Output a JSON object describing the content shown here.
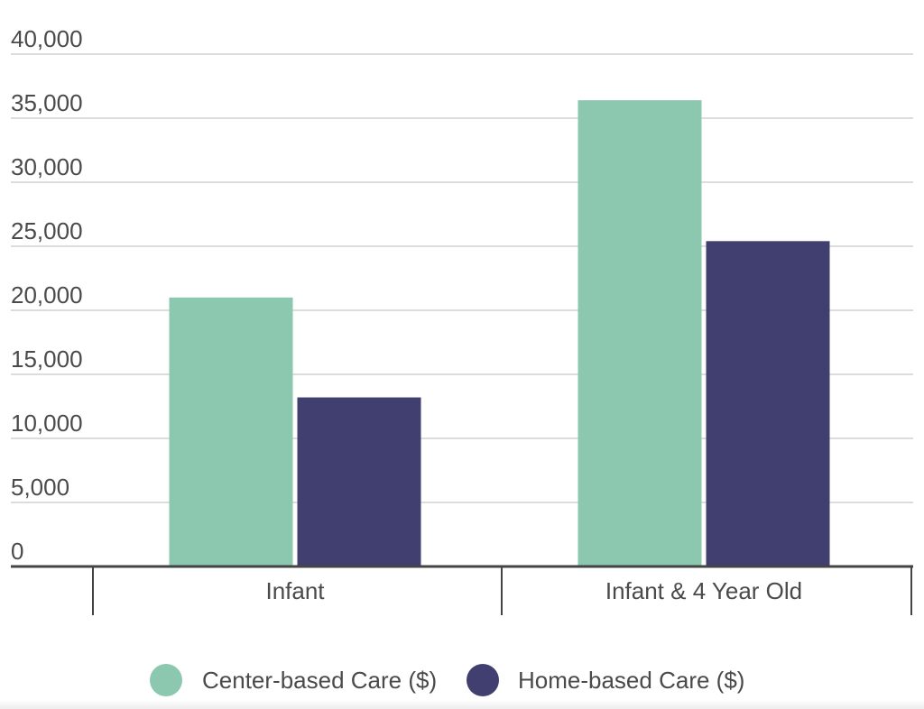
{
  "chart_data": {
    "type": "bar",
    "categories": [
      "Infant",
      "Infant & 4 Year Old"
    ],
    "series": [
      {
        "name": "Center-based Care ($)",
        "values": [
          21000,
          36400
        ],
        "color": "#8cc7b0"
      },
      {
        "name": "Home-based Care ($)",
        "values": [
          13200,
          25400
        ],
        "color": "#403f70"
      }
    ],
    "ylim": [
      0,
      40000
    ],
    "yticks": [
      0,
      5000,
      10000,
      15000,
      20000,
      25000,
      30000,
      35000,
      40000
    ],
    "ytick_labels": [
      "0",
      "5,000",
      "10,000",
      "15,000",
      "20,000",
      "25,000",
      "30,000",
      "35,000",
      "40,000"
    ],
    "title": "",
    "xlabel": "",
    "ylabel": "",
    "grid": true,
    "legend_position": "bottom-center"
  }
}
